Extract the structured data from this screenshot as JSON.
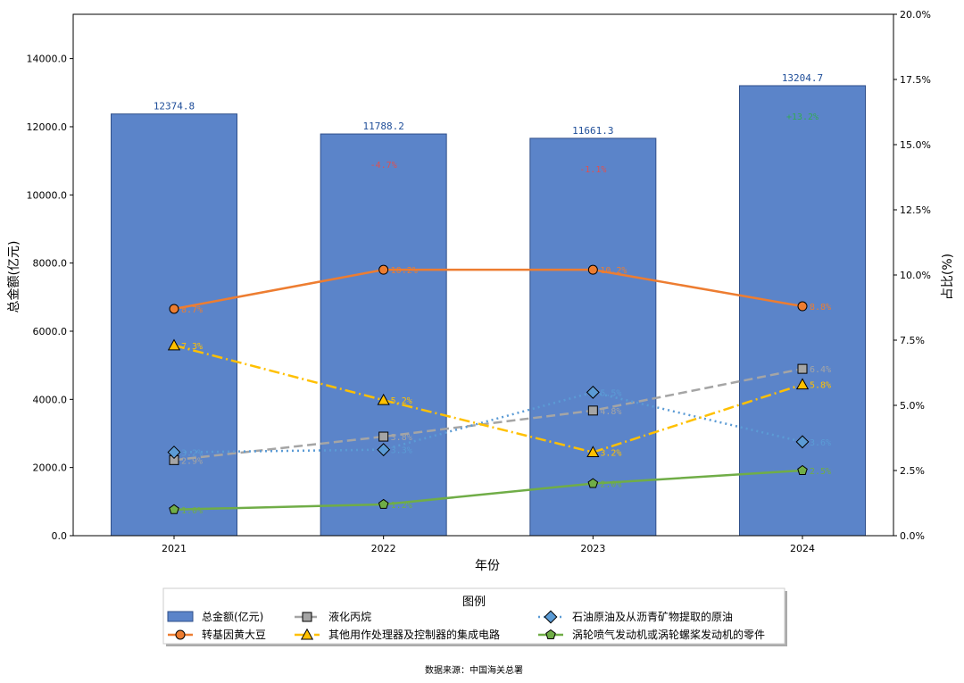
{
  "chart_data": {
    "type": "bar+line",
    "categories": [
      "2021",
      "2022",
      "2023",
      "2024"
    ],
    "xlabel": "年份",
    "ylabel_left": "总金额(亿元)",
    "ylabel_right": "占比(%)",
    "ylim_left": [
      0,
      15300
    ],
    "yticks_left": [
      0,
      2000,
      4000,
      6000,
      8000,
      10000,
      12000,
      14000
    ],
    "yticks_left_labels": [
      "0.0",
      "2000.0",
      "4000.0",
      "6000.0",
      "8000.0",
      "10000.0",
      "12000.0",
      "14000.0"
    ],
    "ylim_right": [
      0,
      20
    ],
    "yticks_right": [
      0,
      2.5,
      5,
      7.5,
      10,
      12.5,
      15,
      17.5,
      20
    ],
    "yticks_right_labels": [
      "0.0%",
      "2.5%",
      "5.0%",
      "7.5%",
      "10.0%",
      "12.5%",
      "15.0%",
      "17.5%",
      "20.0%"
    ],
    "bars": {
      "name": "总金额(亿元)",
      "values": [
        12374.8,
        11788.2,
        11661.3,
        13204.7
      ],
      "labels": [
        "12374.8",
        "11788.2",
        "11661.3",
        "13204.7"
      ],
      "color": "#5b84c9",
      "growth": [
        {
          "index": 1,
          "label": "-4.7%",
          "color": "#e05050"
        },
        {
          "index": 2,
          "label": "-1.1%",
          "color": "#e05050"
        },
        {
          "index": 3,
          "label": "+13.2%",
          "color": "#33aa55"
        }
      ]
    },
    "series": [
      {
        "name": "转基因黄大豆",
        "values": [
          8.7,
          10.2,
          10.2,
          8.8
        ],
        "labels": [
          "8.7%",
          "10.2%",
          "10.2%",
          "8.8%"
        ],
        "color": "#ed7d31",
        "marker": "circle",
        "dash": ""
      },
      {
        "name": "液化丙烷",
        "values": [
          2.9,
          3.8,
          4.8,
          6.4
        ],
        "labels": [
          "2.9%",
          "3.8%",
          "4.8%",
          "6.4%"
        ],
        "color": "#a5a5a5",
        "marker": "square",
        "dash": "10,5"
      },
      {
        "name": "石油原油及从沥青矿物提取的原油",
        "values": [
          3.2,
          3.3,
          5.5,
          3.6
        ],
        "labels": [
          "3.2%",
          "3.3%",
          "5.5%",
          "3.6%"
        ],
        "color": "#5b9bd5",
        "marker": "diamond",
        "dash": "2,4"
      },
      {
        "name": "其他用作处理器及控制器的集成电路",
        "values": [
          7.3,
          5.2,
          3.2,
          5.8
        ],
        "labels": [
          "7.3%",
          "5.2%",
          "3.2%",
          "5.8%"
        ],
        "color": "#ffc000",
        "marker": "triangle",
        "dash": "12,4,2,4"
      },
      {
        "name": "涡轮喷气发动机或涡轮螺桨发动机的零件",
        "values": [
          1.0,
          1.2,
          2.0,
          2.5
        ],
        "labels": [
          "1.0%",
          "1.2%",
          "2.0%",
          "2.5%"
        ],
        "color": "#70ad47",
        "marker": "pentagon",
        "dash": ""
      }
    ],
    "legend": {
      "title": "图例",
      "placement": "bottom-center",
      "order": [
        {
          "kind": "bar",
          "ref": "bars"
        },
        {
          "kind": "line",
          "ref": 1
        },
        {
          "kind": "line",
          "ref": 2
        },
        {
          "kind": "line",
          "ref": 0
        },
        {
          "kind": "line",
          "ref": 3
        },
        {
          "kind": "line",
          "ref": 4
        }
      ]
    },
    "source": "数据来源：中国海关总署"
  }
}
